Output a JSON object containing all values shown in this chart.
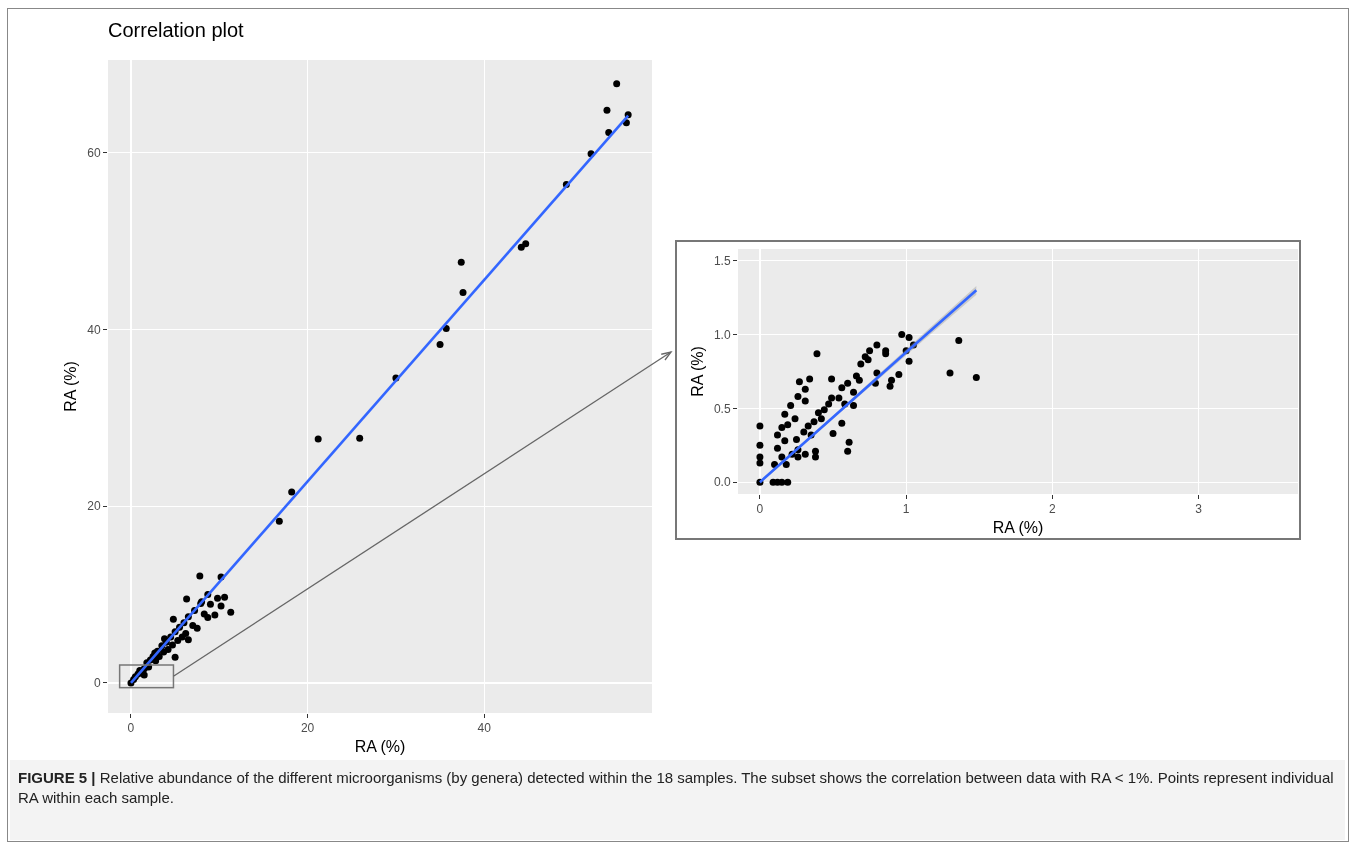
{
  "chart_data": [
    {
      "type": "scatter",
      "title": "Correlation plot",
      "xlabel": "RA (%)",
      "ylabel": "RA (%)",
      "xlim": [
        -2.6,
        59
      ],
      "ylim": [
        -3.4,
        70.5
      ],
      "xticks": [
        0,
        20,
        40
      ],
      "yticks": [
        0,
        20,
        40,
        60
      ],
      "grid": true,
      "annotations": [
        "FIGURE 5 | Relative abundance of the different microorganisms (by genera) detected within the 18 samples. The subset shows the correlation between data with RA < 1%. Points represent individual RA within each sample."
      ],
      "series": [
        {
          "color": "#000000",
          "marker": "circle",
          "x": [
            0,
            0.3,
            0.5,
            0.8,
            1,
            1.5,
            1.8,
            2,
            2.2,
            2.5,
            2.8,
            3,
            3.2,
            3.5,
            3.7,
            4,
            4.2,
            4.5,
            4.7,
            5,
            5,
            5.3,
            5.5,
            5.8,
            6,
            6.2,
            6.5,
            6.5,
            6.3,
            7,
            7.2,
            7.5,
            7.8,
            8,
            8.3,
            8.7,
            8.7,
            9,
            9.5,
            9.8,
            10.2,
            10.2,
            10.6,
            11.3,
            7.9,
            4.8,
            3.8,
            2.7,
            1.5,
            16.8,
            18.2,
            21.2,
            25.9,
            30,
            35,
            35.7,
            37.4,
            37.6,
            44.2,
            44.7,
            49.3,
            52.1,
            54.1,
            53.9,
            55,
            56.3,
            56.1
          ],
          "values": [
            0,
            0.4,
            0.7,
            1,
            1.4,
            1.6,
            2.3,
            1.8,
            2.6,
            3,
            2.5,
            3.6,
            3,
            4.2,
            3.5,
            4.6,
            3.8,
            5.2,
            4.3,
            5.8,
            2.9,
            4.8,
            6.3,
            5.2,
            6.8,
            5.6,
            4.9,
            7.5,
            9.5,
            6.5,
            8.2,
            6.2,
            12.1,
            9.2,
            7.8,
            10,
            7.4,
            8.9,
            7.7,
            9.6,
            12,
            8.7,
            9.7,
            8,
            9,
            7.2,
            5,
            3.4,
            0.9,
            18.3,
            21.6,
            27.6,
            27.7,
            34.5,
            38.3,
            40.1,
            47.6,
            44.2,
            49.3,
            49.7,
            56.4,
            59.9,
            62.3,
            64.8,
            67.8,
            64.3,
            63.4
          ]
        },
        {
          "type": "line",
          "marker": "none",
          "color": "#3366ff",
          "x": [
            0,
            56.3
          ],
          "values": [
            0,
            64.2
          ]
        }
      ]
    },
    {
      "type": "scatter",
      "xlabel": "RA (%)",
      "ylabel": "RA (%)",
      "xlim": [
        -0.15,
        3.68
      ],
      "ylim": [
        -0.08,
        1.58
      ],
      "xticks": [
        0,
        1,
        2,
        3
      ],
      "yticks": [
        {
          "value": 0,
          "label": "0.0"
        },
        {
          "value": 0.5,
          "label": "0.5"
        },
        {
          "value": 1,
          "label": "1.0"
        },
        {
          "value": 1.5,
          "label": "1.5"
        }
      ],
      "grid": true,
      "series": [
        {
          "color": "#000000",
          "marker": "circle",
          "x": [
            0,
            0,
            0,
            0,
            0,
            0.09,
            0.12,
            0.15,
            0.19,
            0.39,
            0.27,
            0.34,
            0.49,
            0.31,
            0.26,
            0.31,
            0.21,
            0.17,
            0.24,
            0.19,
            0.15,
            0.12,
            0.8,
            0.75,
            0.86,
            0.86,
            0.97,
            1.02,
            1.05,
            1,
            1.02,
            1.36,
            1.3,
            1.48,
            0.95,
            0.9,
            0.89,
            0.79,
            0.8,
            0.74,
            0.69,
            0.72,
            0.66,
            0.68,
            0.6,
            0.64,
            0.56,
            0.54,
            0.58,
            0.64,
            0.49,
            0.47,
            0.56,
            0.5,
            0.61,
            0.6,
            0.38,
            0.38,
            0.17,
            0.26,
            0.4,
            0.42,
            0.44,
            0.37,
            0.33,
            0.3,
            0.35,
            0.25,
            0.22,
            0.15,
            0.1,
            0.26,
            0.31,
            0.12,
            0.18
          ],
          "values": [
            0.38,
            0.25,
            0.17,
            0.13,
            0,
            0,
            0,
            0,
            0,
            0.87,
            0.68,
            0.7,
            0.7,
            0.63,
            0.58,
            0.55,
            0.52,
            0.46,
            0.43,
            0.39,
            0.37,
            0.32,
            0.93,
            0.89,
            0.89,
            0.87,
            1,
            0.98,
            0.93,
            0.89,
            0.82,
            0.96,
            0.74,
            0.71,
            0.73,
            0.69,
            0.65,
            0.67,
            0.74,
            0.83,
            0.8,
            0.85,
            0.72,
            0.69,
            0.67,
            0.61,
            0.64,
            0.57,
            0.53,
            0.52,
            0.57,
            0.53,
            0.4,
            0.33,
            0.27,
            0.21,
            0.21,
            0.17,
            0.28,
            0.22,
            0.47,
            0.43,
            0.49,
            0.41,
            0.38,
            0.34,
            0.32,
            0.29,
            0.19,
            0.17,
            0.12,
            0.17,
            0.19,
            0.23,
            0.12
          ]
        },
        {
          "type": "line",
          "marker": "none",
          "color": "#3366ff",
          "x": [
            0,
            0.5,
            1,
            1.48
          ],
          "values": [
            0,
            0.44,
            0.88,
            1.3
          ],
          "lower": [
            -0.01,
            0.43,
            0.86,
            1.27
          ],
          "upper": [
            0.01,
            0.45,
            0.9,
            1.33
          ]
        }
      ]
    }
  ]
}
